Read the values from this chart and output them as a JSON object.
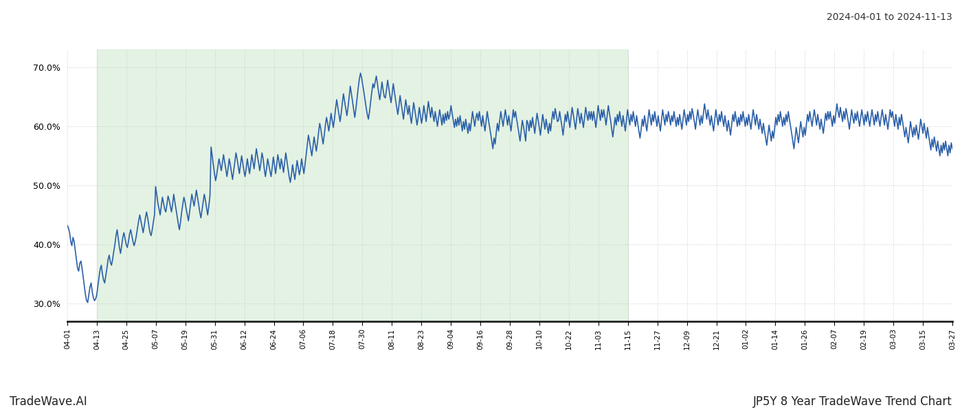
{
  "title_top_right": "2024-04-01 to 2024-11-13",
  "label_left": "TradeWave.AI",
  "label_right": "JP5Y 8 Year TradeWave Trend Chart",
  "line_color": "#2b5fa8",
  "line_width": 1.2,
  "background_color": "#ffffff",
  "green_shade_color": "#c8e6c8",
  "green_shade_alpha": 0.5,
  "ylim": [
    27.0,
    73.0
  ],
  "yticks": [
    30.0,
    40.0,
    50.0,
    60.0,
    70.0
  ],
  "grid_color": "#cccccc",
  "x_labels": [
    "04-01",
    "04-13",
    "04-25",
    "05-07",
    "05-19",
    "05-31",
    "06-12",
    "06-24",
    "07-06",
    "07-18",
    "07-30",
    "08-11",
    "08-23",
    "09-04",
    "09-16",
    "09-28",
    "10-10",
    "10-22",
    "11-03",
    "11-15",
    "11-27",
    "12-09",
    "12-21",
    "01-02",
    "01-14",
    "01-26",
    "02-07",
    "02-19",
    "03-03",
    "03-15",
    "03-27"
  ],
  "green_shade_start_label": "04-07",
  "green_shade_end_label": "11-09",
  "values": [
    43.2,
    42.8,
    42.0,
    40.5,
    39.8,
    41.2,
    40.5,
    39.0,
    37.5,
    36.0,
    35.5,
    36.8,
    37.2,
    36.0,
    34.5,
    33.0,
    31.5,
    30.5,
    30.2,
    31.5,
    32.8,
    33.5,
    32.0,
    31.0,
    30.5,
    30.8,
    31.5,
    33.0,
    34.5,
    35.8,
    36.5,
    35.0,
    34.0,
    33.5,
    34.8,
    36.0,
    37.5,
    38.2,
    37.0,
    36.5,
    37.5,
    38.8,
    40.0,
    41.5,
    42.5,
    41.0,
    39.5,
    38.5,
    39.8,
    41.2,
    42.0,
    41.0,
    40.0,
    39.5,
    40.5,
    41.8,
    42.5,
    41.5,
    40.5,
    39.8,
    40.5,
    41.5,
    42.8,
    44.0,
    45.0,
    44.0,
    43.0,
    42.0,
    43.2,
    44.5,
    45.5,
    44.5,
    43.2,
    42.0,
    41.5,
    42.5,
    43.8,
    45.0,
    49.8,
    48.5,
    47.0,
    46.0,
    45.0,
    46.5,
    48.0,
    47.0,
    46.0,
    45.5,
    46.8,
    48.2,
    47.5,
    46.5,
    45.5,
    46.8,
    48.5,
    47.2,
    46.0,
    44.8,
    43.5,
    42.5,
    43.8,
    45.5,
    46.8,
    48.0,
    47.2,
    46.0,
    45.0,
    44.0,
    45.5,
    47.0,
    48.5,
    47.5,
    46.5,
    47.8,
    49.2,
    48.0,
    46.8,
    45.5,
    44.5,
    45.8,
    47.2,
    48.5,
    47.5,
    46.2,
    45.0,
    46.5,
    48.2,
    56.5,
    55.0,
    53.5,
    52.0,
    50.8,
    51.8,
    53.2,
    54.5,
    53.5,
    52.5,
    53.8,
    55.2,
    54.0,
    52.8,
    51.5,
    52.8,
    54.5,
    53.5,
    52.2,
    51.0,
    52.5,
    54.0,
    55.5,
    54.5,
    53.2,
    52.0,
    53.5,
    55.0,
    53.8,
    52.5,
    51.5,
    52.8,
    54.5,
    53.2,
    52.0,
    53.5,
    55.2,
    54.0,
    52.8,
    54.5,
    56.2,
    55.0,
    53.8,
    52.5,
    53.8,
    55.5,
    54.5,
    52.8,
    51.5,
    52.8,
    54.5,
    53.5,
    52.5,
    51.5,
    53.0,
    54.8,
    53.5,
    52.0,
    53.5,
    55.2,
    54.0,
    52.8,
    54.5,
    53.5,
    52.2,
    53.8,
    55.5,
    54.2,
    52.8,
    51.5,
    50.5,
    51.8,
    53.5,
    52.2,
    51.0,
    52.5,
    54.2,
    53.0,
    51.8,
    52.8,
    54.5,
    53.2,
    52.0,
    53.5,
    55.2,
    56.8,
    58.5,
    57.5,
    56.2,
    55.0,
    56.5,
    58.2,
    57.0,
    55.8,
    57.2,
    59.0,
    60.5,
    59.5,
    58.2,
    57.0,
    58.5,
    60.2,
    61.5,
    60.5,
    59.2,
    60.5,
    62.2,
    61.0,
    59.8,
    61.2,
    63.0,
    64.5,
    63.2,
    62.0,
    60.8,
    62.2,
    64.0,
    65.5,
    64.2,
    63.0,
    61.8,
    63.2,
    65.0,
    66.8,
    65.5,
    64.2,
    62.8,
    61.5,
    63.0,
    64.8,
    66.5,
    68.0,
    69.0,
    68.2,
    67.0,
    65.8,
    64.5,
    63.2,
    62.0,
    61.2,
    62.5,
    64.2,
    65.8,
    67.2,
    66.5,
    67.5,
    68.5,
    67.2,
    65.8,
    64.5,
    65.8,
    67.5,
    66.2,
    65.0,
    64.8,
    66.2,
    67.8,
    66.5,
    65.2,
    64.0,
    65.5,
    67.2,
    65.8,
    64.5,
    63.2,
    62.0,
    63.5,
    65.2,
    63.8,
    62.5,
    61.2,
    62.8,
    64.5,
    63.2,
    62.0,
    63.5,
    61.8,
    60.5,
    62.2,
    64.0,
    62.8,
    61.5,
    60.2,
    61.5,
    63.2,
    61.8,
    60.5,
    61.8,
    63.5,
    62.2,
    60.8,
    62.5,
    64.2,
    62.8,
    61.5,
    63.2,
    62.0,
    60.8,
    62.5,
    61.2,
    60.0,
    61.5,
    62.8,
    61.5,
    60.2,
    62.0,
    60.5,
    62.2,
    61.0,
    62.5,
    61.2,
    62.0,
    63.5,
    62.2,
    61.0,
    59.8,
    61.2,
    60.0,
    61.5,
    60.2,
    61.8,
    60.5,
    59.2,
    60.8,
    59.5,
    61.2,
    60.0,
    58.8,
    60.5,
    59.2,
    60.8,
    62.5,
    61.2,
    60.0,
    61.5,
    62.2,
    61.0,
    62.5,
    61.2,
    60.0,
    61.8,
    60.5,
    59.2,
    60.8,
    62.5,
    61.2,
    60.0,
    58.8,
    57.5,
    56.2,
    58.0,
    57.0,
    59.0,
    60.5,
    59.2,
    61.0,
    62.5,
    61.2,
    60.0,
    61.5,
    62.8,
    61.5,
    60.2,
    61.8,
    60.5,
    59.2,
    61.0,
    62.8,
    61.5,
    62.5,
    61.2,
    60.0,
    58.8,
    57.5,
    59.2,
    61.0,
    60.0,
    58.8,
    57.5,
    61.0,
    60.5,
    59.2,
    61.0,
    59.8,
    61.5,
    60.2,
    58.8,
    60.5,
    62.2,
    61.0,
    59.8,
    58.5,
    60.2,
    62.0,
    60.8,
    59.5,
    61.2,
    60.0,
    58.8,
    60.5,
    59.2,
    61.0,
    62.5,
    61.2,
    63.0,
    62.0,
    60.8,
    61.0,
    62.5,
    61.2,
    60.0,
    58.5,
    60.2,
    62.0,
    60.8,
    62.5,
    61.2,
    59.8,
    61.5,
    63.2,
    62.0,
    60.8,
    59.5,
    61.2,
    63.0,
    61.8,
    60.5,
    62.2,
    61.0,
    59.8,
    61.5,
    63.2,
    62.0,
    61.0,
    62.5,
    61.2,
    62.5,
    61.0,
    62.5,
    61.2,
    59.8,
    61.5,
    63.5,
    62.2,
    61.0,
    62.8,
    61.5,
    62.8,
    61.5,
    60.2,
    61.8,
    63.5,
    62.2,
    61.0,
    59.5,
    58.2,
    59.8,
    61.5,
    60.2,
    62.0,
    60.8,
    62.5,
    61.2,
    60.0,
    61.8,
    60.5,
    59.2,
    61.0,
    62.8,
    61.5,
    60.2,
    62.0,
    60.8,
    62.5,
    61.2,
    60.0,
    61.8,
    60.5,
    59.2,
    58.0,
    59.5,
    61.2,
    60.0,
    61.8,
    60.5,
    59.2,
    61.0,
    62.8,
    61.5,
    60.2,
    62.0,
    60.8,
    62.5,
    61.2,
    60.0,
    61.8,
    60.5,
    59.2,
    61.0,
    62.8,
    61.5,
    60.2,
    62.0,
    60.8,
    62.5,
    61.5,
    60.2,
    61.8,
    60.8,
    62.5,
    61.2,
    60.0,
    61.5,
    60.2,
    62.0,
    60.8,
    59.5,
    61.2,
    62.8,
    61.5,
    60.2,
    62.0,
    60.8,
    62.5,
    61.2,
    63.0,
    62.0,
    60.8,
    59.5,
    61.2,
    62.8,
    61.5,
    60.2,
    61.8,
    60.5,
    62.2,
    63.8,
    62.5,
    61.2,
    62.8,
    61.5,
    60.2,
    61.8,
    60.5,
    59.2,
    61.0,
    62.8,
    61.5,
    60.2,
    62.0,
    60.8,
    62.5,
    61.2,
    60.0,
    61.8,
    60.5,
    59.2,
    61.0,
    59.8,
    58.5,
    60.2,
    62.0,
    60.8,
    62.5,
    61.2,
    60.0,
    61.5,
    60.2,
    62.0,
    60.8,
    62.5,
    61.2,
    60.0,
    61.5,
    60.2,
    62.0,
    60.8,
    59.5,
    61.2,
    62.8,
    61.5,
    60.2,
    62.0,
    60.8,
    59.5,
    61.2,
    60.0,
    58.8,
    60.5,
    59.2,
    58.0,
    56.8,
    58.5,
    60.2,
    58.8,
    57.5,
    59.2,
    58.0,
    59.8,
    61.5,
    60.2,
    62.0,
    60.8,
    62.5,
    61.2,
    60.0,
    61.5,
    60.2,
    62.0,
    60.8,
    62.5,
    61.2,
    60.0,
    58.8,
    57.5,
    56.2,
    58.0,
    59.8,
    58.5,
    57.2,
    59.0,
    60.8,
    59.5,
    58.2,
    59.8,
    58.5,
    60.2,
    62.0,
    60.8,
    62.5,
    61.2,
    60.0,
    61.5,
    62.8,
    61.5,
    60.2,
    62.0,
    60.8,
    59.5,
    61.2,
    60.0,
    58.8,
    60.5,
    62.2,
    61.0,
    62.5,
    61.2,
    62.5,
    61.2,
    60.0,
    61.8,
    60.5,
    62.2,
    63.8,
    62.5,
    61.5,
    63.2,
    62.0,
    60.8,
    62.5,
    61.2,
    63.0,
    62.0,
    60.8,
    59.5,
    61.2,
    62.8,
    61.5,
    60.5,
    62.2,
    61.0,
    62.5,
    61.2,
    60.0,
    61.5,
    62.8,
    61.5,
    60.2,
    62.0,
    60.8,
    62.5,
    61.2,
    60.0,
    61.5,
    62.8,
    61.5,
    60.2,
    62.0,
    60.8,
    62.5,
    61.2,
    60.0,
    61.5,
    62.8,
    61.5,
    60.2,
    62.0,
    60.8,
    59.5,
    61.2,
    62.8,
    61.5,
    62.5,
    61.2,
    60.0,
    62.0,
    60.8,
    59.5,
    61.5,
    60.2,
    62.0,
    60.8,
    59.5,
    58.2,
    59.8,
    58.5,
    57.2,
    59.0,
    60.8,
    59.5,
    58.2,
    59.8,
    58.5,
    60.2,
    59.0,
    57.8,
    59.5,
    61.2,
    60.0,
    58.8,
    60.5,
    59.2,
    58.0,
    59.8,
    58.5,
    57.2,
    56.0,
    57.8,
    56.5,
    58.2,
    57.0,
    55.8,
    57.5,
    56.2,
    55.0,
    56.8,
    55.5,
    57.2,
    56.0,
    57.5,
    56.2,
    55.0,
    56.8,
    55.5,
    57.2,
    56.2
  ]
}
